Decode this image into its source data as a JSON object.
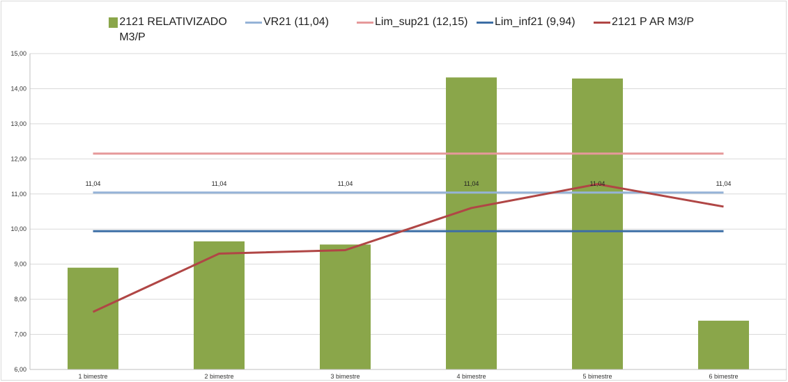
{
  "chart_data": {
    "type": "bar",
    "title": "",
    "xlabel": "",
    "ylabel": "",
    "categories": [
      "1 bimestre",
      "2 bimestre",
      "3 bimestre",
      "4 bimestre",
      "5 bimestre",
      "6 bimestre"
    ],
    "ylim": [
      6,
      15
    ],
    "yticks": [
      "6,00",
      "7,00",
      "8,00",
      "9,00",
      "10,00",
      "11,00",
      "12,00",
      "13,00",
      "14,00",
      "15,00"
    ],
    "ytick_values": [
      6,
      7,
      8,
      9,
      10,
      11,
      12,
      13,
      14,
      15
    ],
    "grid": true,
    "legend_position": "top",
    "series": [
      {
        "name": "2121 RELATIVIZADO M3/P",
        "type": "bar",
        "color": "#8aa64a",
        "values": [
          8.9,
          9.65,
          9.56,
          14.32,
          14.29,
          7.39
        ]
      },
      {
        "name": "VR21 (11,04)",
        "type": "line",
        "color": "#95b3d7",
        "values": [
          11.04,
          11.04,
          11.04,
          11.04,
          11.04,
          11.04
        ]
      },
      {
        "name": "Lim_sup21 (12,15)",
        "type": "line",
        "color": "#e6999a",
        "values": [
          12.15,
          12.15,
          12.15,
          12.15,
          12.15,
          12.15
        ]
      },
      {
        "name": "Lim_inf21 (9,94)",
        "type": "line",
        "color": "#3c6ea5",
        "values": [
          9.94,
          9.94,
          9.94,
          9.94,
          9.94,
          9.94
        ]
      },
      {
        "name": "2121 P AR M3/P",
        "type": "line",
        "color": "#b04645",
        "values": [
          7.64,
          9.3,
          9.4,
          10.6,
          11.28,
          10.64
        ]
      }
    ],
    "data_labels": {
      "series": "VR21 (11,04)",
      "texts": [
        "11,04",
        "11,04",
        "11,04",
        "11,04",
        "11,04",
        "11,04"
      ]
    }
  }
}
